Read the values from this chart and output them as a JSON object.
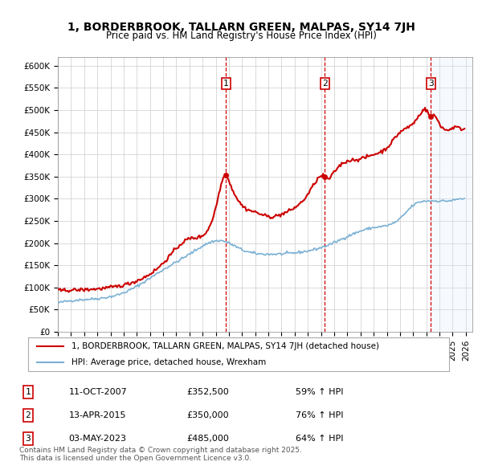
{
  "title": "1, BORDERBROOK, TALLARN GREEN, MALPAS, SY14 7JH",
  "subtitle": "Price paid vs. HM Land Registry's House Price Index (HPI)",
  "ylabel_ticks": [
    "£0",
    "£50K",
    "£100K",
    "£150K",
    "£200K",
    "£250K",
    "£300K",
    "£350K",
    "£400K",
    "£450K",
    "£500K",
    "£550K",
    "£600K"
  ],
  "ytick_values": [
    0,
    50000,
    100000,
    150000,
    200000,
    250000,
    300000,
    350000,
    400000,
    450000,
    500000,
    550000,
    600000
  ],
  "ylim": [
    0,
    620000
  ],
  "xlim_start": 1995.0,
  "xlim_end": 2026.5,
  "sale_dates": [
    2007.78,
    2015.28,
    2023.34
  ],
  "sale_prices": [
    352500,
    350000,
    485000
  ],
  "sale_labels": [
    "1",
    "2",
    "3"
  ],
  "sale_info": [
    {
      "label": "1",
      "date": "11-OCT-2007",
      "price": "£352,500",
      "hpi": "59% ↑ HPI"
    },
    {
      "label": "2",
      "date": "13-APR-2015",
      "price": "£350,000",
      "hpi": "76% ↑ HPI"
    },
    {
      "label": "3",
      "date": "03-MAY-2023",
      "price": "£485,000",
      "hpi": "64% ↑ HPI"
    }
  ],
  "legend_line1": "1, BORDERBROOK, TALLARN GREEN, MALPAS, SY14 7JH (detached house)",
  "legend_line2": "HPI: Average price, detached house, Wrexham",
  "footnote": "Contains HM Land Registry data © Crown copyright and database right 2025.\nThis data is licensed under the Open Government Licence v3.0.",
  "line_color_red": "#cc0000",
  "line_color_blue": "#7ab0d4",
  "background_color": "#ffffff",
  "grid_color": "#cccccc",
  "shaded_region_color": "#ddeeff"
}
